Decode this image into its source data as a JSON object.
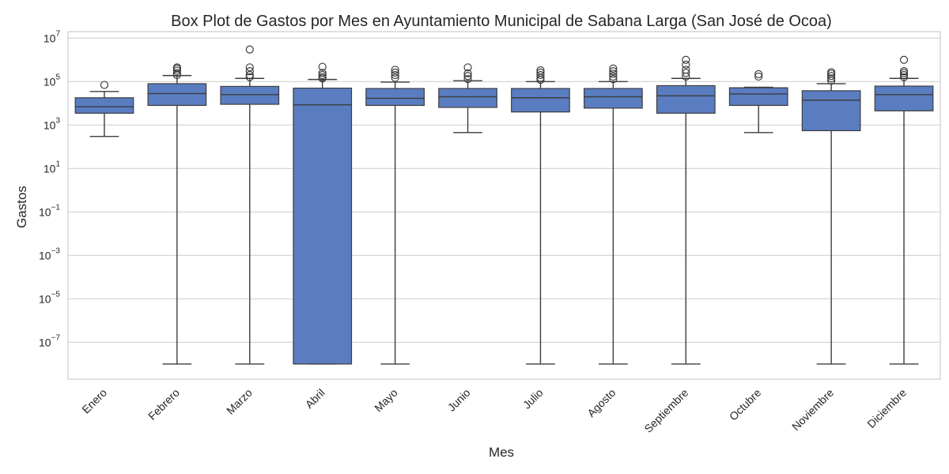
{
  "chart_data": {
    "type": "box",
    "title": "Box Plot de Gastos por Mes en Ayuntamiento Municipal de Sabana Larga (San José de Ocoa)",
    "xlabel": "Mes",
    "ylabel": "Gastos",
    "yscale": "log",
    "ylim": [
      2e-09,
      20000000
    ],
    "yticks": [
      {
        "value": 1e-07,
        "base": "10",
        "exp": "−7"
      },
      {
        "value": 1e-05,
        "base": "10",
        "exp": "−5"
      },
      {
        "value": 0.001,
        "base": "10",
        "exp": "−3"
      },
      {
        "value": 0.1,
        "base": "10",
        "exp": "−1"
      },
      {
        "value": 10,
        "base": "10",
        "exp": "1"
      },
      {
        "value": 1000,
        "base": "10",
        "exp": "3"
      },
      {
        "value": 100000,
        "base": "10",
        "exp": "5"
      },
      {
        "value": 10000000,
        "base": "10",
        "exp": "7"
      }
    ],
    "grid": true,
    "box_color": "#5a7dc2",
    "edge_color": "#3d3d3d",
    "categories": [
      "Enero",
      "Febrero",
      "Marzo",
      "Abril",
      "Mayo",
      "Junio",
      "Julio",
      "Agosto",
      "Septiembre",
      "Octubre",
      "Noviembre",
      "Diciembre"
    ],
    "boxes": [
      {
        "whisker_low": 300,
        "q1": 3500,
        "median": 7000,
        "q3": 18000,
        "whisker_high": 35000,
        "outliers": [
          70000
        ]
      },
      {
        "whisker_low": 1e-08,
        "q1": 8000,
        "median": 28000,
        "q3": 80000,
        "whisker_high": 190000,
        "outliers": [
          200000,
          250000,
          320000,
          400000,
          450000
        ]
      },
      {
        "whisker_low": 1e-08,
        "q1": 9000,
        "median": 25000,
        "q3": 60000,
        "whisker_high": 140000,
        "outliers": [
          160000,
          200000,
          300000,
          450000,
          3000000
        ]
      },
      {
        "whisker_low": 1e-08,
        "q1": 1e-08,
        "median": 8500,
        "q3": 50000,
        "whisker_high": 125000,
        "outliers": [
          140000,
          160000,
          200000,
          250000,
          480000
        ]
      },
      {
        "whisker_low": 1e-08,
        "q1": 8000,
        "median": 17000,
        "q3": 48000,
        "whisker_high": 95000,
        "outliers": [
          150000,
          200000,
          260000,
          350000
        ]
      },
      {
        "whisker_low": 450,
        "q1": 6500,
        "median": 20000,
        "q3": 48000,
        "whisker_high": 110000,
        "outliers": [
          130000,
          180000,
          240000,
          450000
        ]
      },
      {
        "whisker_low": 1e-08,
        "q1": 4000,
        "median": 18000,
        "q3": 48000,
        "whisker_high": 100000,
        "outliers": [
          120000,
          150000,
          200000,
          260000,
          330000
        ]
      },
      {
        "whisker_low": 1e-08,
        "q1": 6000,
        "median": 20000,
        "q3": 48000,
        "whisker_high": 100000,
        "outliers": [
          130000,
          170000,
          230000,
          300000,
          400000
        ]
      },
      {
        "whisker_low": 1e-08,
        "q1": 3500,
        "median": 22000,
        "q3": 65000,
        "whisker_high": 140000,
        "outliers": [
          170000,
          250000,
          350000,
          600000,
          1000000
        ]
      },
      {
        "whisker_low": 450,
        "q1": 8000,
        "median": 27000,
        "q3": 52000,
        "whisker_high": 55000,
        "outliers": [
          170000,
          220000
        ]
      },
      {
        "whisker_low": 1e-08,
        "q1": 550,
        "median": 14000,
        "q3": 38000,
        "whisker_high": 80000,
        "outliers": [
          110000,
          140000,
          180000,
          230000,
          270000
        ]
      },
      {
        "whisker_low": 1e-08,
        "q1": 4500,
        "median": 25000,
        "q3": 62000,
        "whisker_high": 140000,
        "outliers": [
          160000,
          200000,
          250000,
          300000,
          1000000
        ]
      }
    ]
  }
}
